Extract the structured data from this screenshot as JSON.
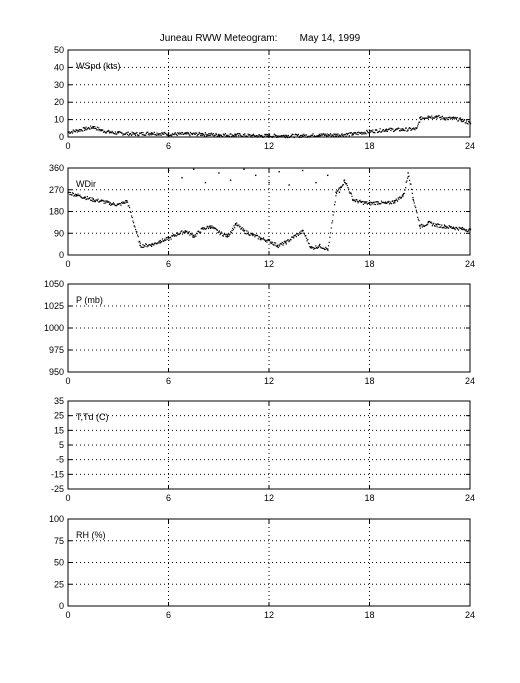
{
  "title": "Juneau RWW Meteogram:        May 14, 1999",
  "chart_data": [
    {
      "type": "scatter",
      "label": "WSpd (kts)",
      "xlim": [
        0,
        24
      ],
      "xticks": [
        0,
        6,
        12,
        18,
        24
      ],
      "ylim": [
        0,
        50
      ],
      "yticks": [
        0,
        10,
        20,
        30,
        40,
        50
      ],
      "grid": true,
      "series": [
        {
          "x": [
            0,
            0.5,
            1,
            1.5,
            2,
            2.5,
            3,
            4,
            5,
            6,
            7,
            8,
            9,
            10,
            11,
            12,
            13,
            14,
            15,
            16,
            17,
            18,
            19,
            20,
            20.8,
            21,
            21.5,
            22,
            22.5,
            23,
            23.5,
            24
          ],
          "y": [
            3,
            4,
            5,
            6,
            4,
            3,
            2.5,
            2,
            2.5,
            2,
            2,
            2,
            1.5,
            1.5,
            1,
            1,
            1,
            1,
            1.5,
            1.5,
            2,
            3.5,
            4.5,
            4.5,
            5,
            11,
            12,
            12,
            11,
            11,
            10,
            8
          ]
        }
      ]
    },
    {
      "type": "scatter",
      "label": "WDir",
      "xlim": [
        0,
        24
      ],
      "xticks": [
        0,
        6,
        12,
        18,
        24
      ],
      "ylim": [
        0,
        360
      ],
      "yticks": [
        0,
        90,
        180,
        270,
        360
      ],
      "grid": true,
      "series": [
        {
          "x": [
            0,
            0.5,
            1,
            1.5,
            2,
            2.5,
            3,
            3.5,
            4.3,
            5,
            5.5,
            6,
            6.5,
            7,
            7.5,
            8,
            8.5,
            9,
            9.5,
            10,
            10.5,
            11,
            11.5,
            12,
            12.5,
            13,
            13.5,
            14,
            14.5,
            15,
            15.5,
            16,
            16.5,
            17,
            17.5,
            18,
            18.5,
            19,
            19.5,
            20,
            20.3,
            20.6,
            21,
            21.5,
            22,
            22.5,
            23,
            23.5,
            24
          ],
          "y": [
            260,
            250,
            240,
            230,
            225,
            215,
            210,
            225,
            40,
            45,
            60,
            70,
            90,
            100,
            80,
            110,
            120,
            95,
            80,
            130,
            100,
            85,
            70,
            60,
            40,
            55,
            80,
            100,
            30,
            40,
            25,
            260,
            310,
            230,
            220,
            215,
            220,
            215,
            225,
            250,
            340,
            230,
            120,
            135,
            125,
            120,
            115,
            110,
            105
          ]
        },
        {
          "x": [
            6,
            6.8,
            7.5,
            8.2,
            9,
            9.7,
            10.5,
            11.2,
            12,
            12.6,
            13.2,
            14,
            14.8,
            15.5,
            16.2
          ],
          "y": [
            350,
            320,
            355,
            300,
            340,
            310,
            355,
            330,
            300,
            345,
            290,
            350,
            300,
            330,
            260
          ]
        }
      ]
    },
    {
      "type": "scatter",
      "label": "P (mb)",
      "xlim": [
        0,
        24
      ],
      "xticks": [
        0,
        6,
        12,
        18,
        24
      ],
      "ylim": [
        950,
        1050
      ],
      "yticks": [
        950,
        975,
        1000,
        1025,
        1050
      ],
      "grid": true,
      "series": []
    },
    {
      "type": "scatter",
      "label": "T,Td (C)",
      "xlim": [
        0,
        24
      ],
      "xticks": [
        0,
        6,
        12,
        18,
        24
      ],
      "ylim": [
        -25,
        35
      ],
      "yticks": [
        -25,
        -15,
        -5,
        5,
        15,
        25,
        35
      ],
      "ytick_labels": [
        "-25",
        "-15",
        "-5",
        "5",
        "15",
        "25",
        "35"
      ],
      "grid": true,
      "series": []
    },
    {
      "type": "scatter",
      "label": "RH (%)",
      "xlim": [
        0,
        24
      ],
      "xticks": [
        0,
        6,
        12,
        18,
        24
      ],
      "ylim": [
        0,
        100
      ],
      "yticks": [
        0,
        25,
        50,
        75,
        100
      ],
      "grid": true,
      "series": []
    }
  ]
}
